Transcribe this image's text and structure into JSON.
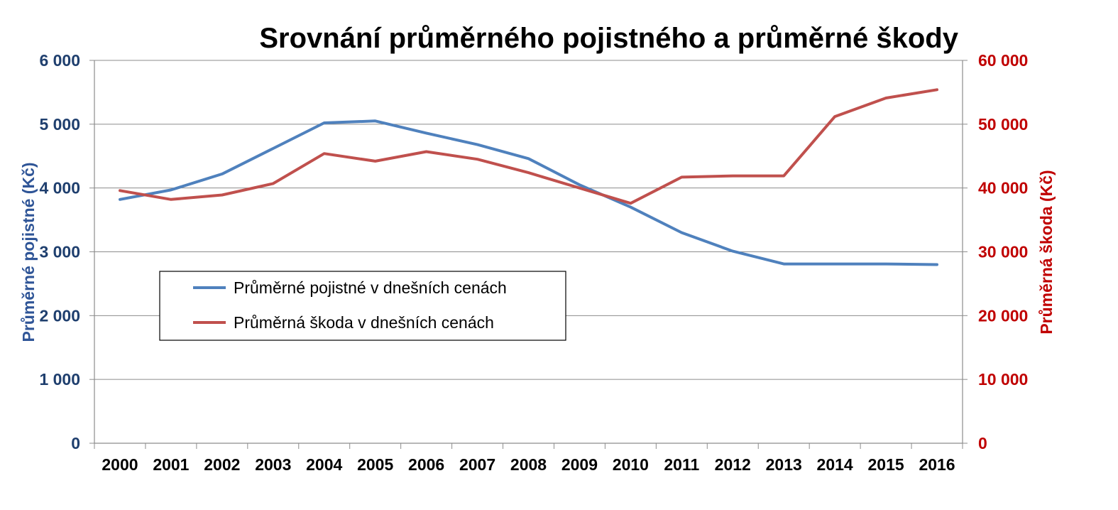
{
  "chart_data": {
    "type": "line",
    "title": "Srovnání průměrného pojistného a průměrné škody",
    "categories": [
      "2000",
      "2001",
      "2002",
      "2003",
      "2004",
      "2005",
      "2006",
      "2007",
      "2008",
      "2009",
      "2010",
      "2011",
      "2012",
      "2013",
      "2014",
      "2015",
      "2016"
    ],
    "series": [
      {
        "name": "Průměrné pojistné v dnešních cenách",
        "axis": "left",
        "color": "#4F81BD",
        "values": [
          3820,
          3970,
          4220,
          4620,
          5020,
          5050,
          4860,
          4680,
          4460,
          4050,
          3700,
          3300,
          3010,
          2810,
          2810,
          2810,
          2800
        ]
      },
      {
        "name": "Průměrná škoda v dnešních cenách",
        "axis": "right",
        "color": "#C0504D",
        "values": [
          39600,
          38200,
          38900,
          40700,
          45400,
          44200,
          45700,
          44500,
          42400,
          40000,
          37600,
          41700,
          41900,
          41900,
          51200,
          54100,
          55400
        ]
      }
    ],
    "y_left": {
      "label": "Průměrné pojistné (Kč)",
      "range": [
        0,
        6000
      ],
      "ticks": [
        0,
        1000,
        2000,
        3000,
        4000,
        5000,
        6000
      ],
      "tick_labels": [
        "0",
        "1 000",
        "2 000",
        "3 000",
        "4 000",
        "5 000",
        "6 000"
      ],
      "color": "#1F3F6E"
    },
    "y_right": {
      "label": "Průměrná škoda (Kč)",
      "range": [
        0,
        60000
      ],
      "ticks": [
        0,
        10000,
        20000,
        30000,
        40000,
        50000,
        60000
      ],
      "tick_labels": [
        "0",
        "10 000",
        "20 000",
        "30 000",
        "40 000",
        "50 000",
        "60 000"
      ],
      "color": "#C00000"
    },
    "grid": true,
    "legend_position": "inside-left"
  }
}
